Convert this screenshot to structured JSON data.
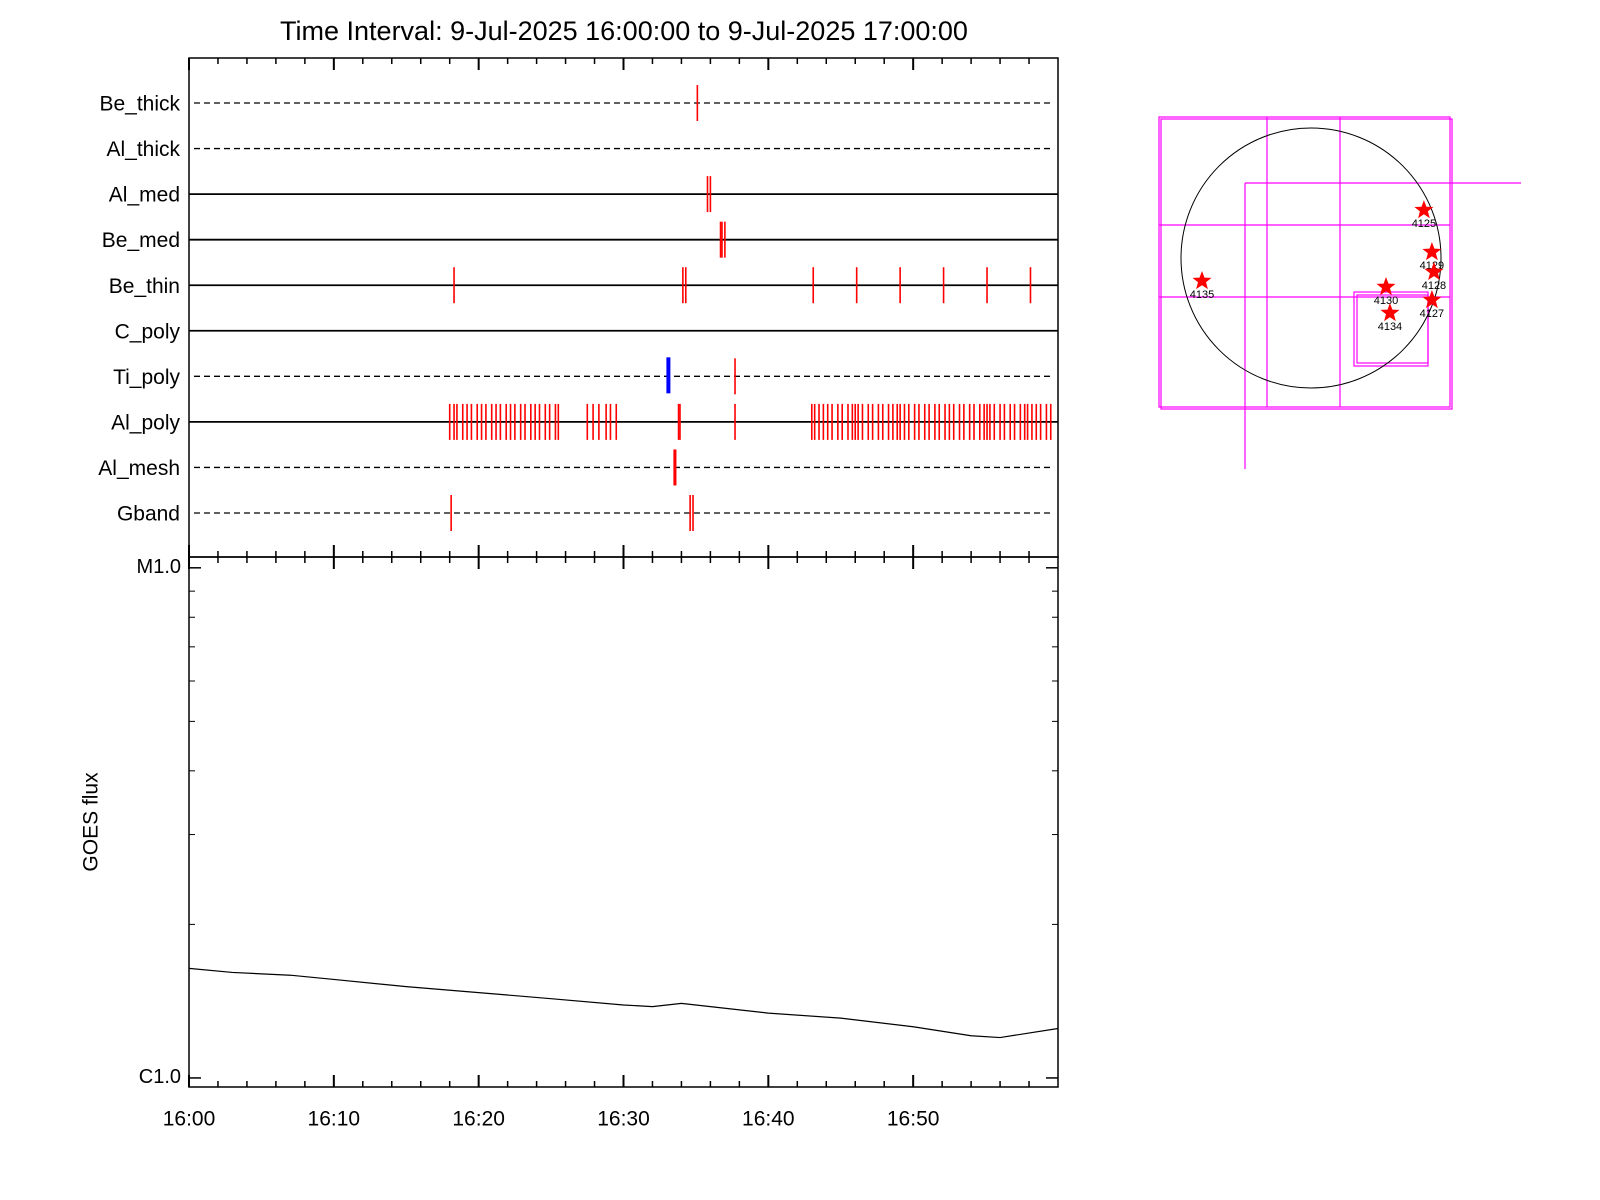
{
  "chart_data": [
    {
      "type": "timeline",
      "title": "Time Interval:  9-Jul-2025 16:00:00 to  9-Jul-2025 17:00:00",
      "color": "#ff0000",
      "highlight_color": "#0000ff",
      "rows": [
        {
          "name": "Be_thick",
          "line": "dashed",
          "events": [
            35.1
          ]
        },
        {
          "name": "Al_thick",
          "line": "dashed",
          "events": []
        },
        {
          "name": "Al_med",
          "line": "solid",
          "events": [
            35.8,
            36.0
          ]
        },
        {
          "name": "Be_med",
          "line": "solid",
          "events": [
            36.7,
            36.8,
            37.0
          ]
        },
        {
          "name": "Be_thin",
          "line": "solid",
          "events": [
            18.3,
            34.1,
            34.3,
            43.1,
            46.1,
            49.1,
            52.1,
            55.1,
            58.1
          ]
        },
        {
          "name": "C_poly",
          "line": "solid",
          "events": []
        },
        {
          "name": "Ti_poly",
          "line": "dashed",
          "events": [
            37.7
          ],
          "highlight_events": [
            33.1
          ]
        },
        {
          "name": "Al_poly",
          "line": "solid",
          "events": [
            18.0,
            18.3,
            18.5,
            18.9,
            19.2,
            19.5,
            19.9,
            20.2,
            20.5,
            20.9,
            21.2,
            21.5,
            21.9,
            22.2,
            22.5,
            22.9,
            23.2,
            23.6,
            23.9,
            24.2,
            24.6,
            24.9,
            25.3,
            25.5,
            27.5,
            27.9,
            28.3,
            28.8,
            29.1,
            29.5,
            33.8,
            33.9,
            37.7,
            43.0,
            43.2,
            43.5,
            43.8,
            44.1,
            44.4,
            44.8,
            45.1,
            45.5,
            45.8,
            46.0,
            46.2,
            46.5,
            46.9,
            47.2,
            47.6,
            47.9,
            48.3,
            48.6,
            48.9,
            49.1,
            49.4,
            49.7,
            50.1,
            50.4,
            50.8,
            51.1,
            51.5,
            51.8,
            52.2,
            52.5,
            52.8,
            53.2,
            53.5,
            53.9,
            54.2,
            54.6,
            54.9,
            55.1,
            55.3,
            55.6,
            56.0,
            56.3,
            56.7,
            57.0,
            57.4,
            57.7,
            57.9,
            58.2,
            58.5,
            58.8,
            59.2,
            59.5
          ]
        },
        {
          "name": "Al_mesh",
          "line": "dashed",
          "events": [
            33.5,
            33.6
          ]
        },
        {
          "name": "Gband",
          "line": "dashed",
          "events": [
            18.1,
            34.6,
            34.8
          ]
        }
      ]
    },
    {
      "type": "line",
      "ylabel": "GOES flux",
      "log_scale": true,
      "color": "#000000",
      "x": [
        0,
        3,
        7,
        10,
        15,
        20,
        25,
        30,
        32,
        34,
        36,
        40,
        45,
        50,
        54,
        56,
        60
      ],
      "values": [
        1.64e-06,
        1.61e-06,
        1.59e-06,
        1.56e-06,
        1.51e-06,
        1.47e-06,
        1.43e-06,
        1.39e-06,
        1.38e-06,
        1.4e-06,
        1.38e-06,
        1.34e-06,
        1.31e-06,
        1.26e-06,
        1.21e-06,
        1.2e-06,
        1.25e-06
      ],
      "xlim": [
        0,
        60
      ],
      "xticks": [
        {
          "value": 0,
          "label": "16:00"
        },
        {
          "value": 10,
          "label": "16:10"
        },
        {
          "value": 20,
          "label": "16:20"
        },
        {
          "value": 30,
          "label": "16:30"
        },
        {
          "value": 40,
          "label": "16:40"
        },
        {
          "value": 50,
          "label": "16:50"
        }
      ],
      "xminorticks": [
        2,
        4,
        6,
        8,
        12,
        14,
        16,
        18,
        22,
        24,
        26,
        28,
        32,
        34,
        36,
        38,
        42,
        44,
        46,
        48,
        52,
        54,
        56,
        58
      ],
      "ylim": [
        9.6e-07,
        1.05e-05
      ],
      "yticks": [
        {
          "value": 1e-06,
          "label": "C1.0"
        },
        {
          "value": 1e-05,
          "label": "M1.0"
        }
      ],
      "yminorticks": [
        2e-06,
        3e-06,
        4e-06,
        5e-06,
        6e-06,
        7e-06,
        8e-06,
        9e-06
      ]
    },
    {
      "type": "map",
      "color": "#ff0000",
      "points": [
        {
          "label": "4125",
          "x": 834,
          "y": 354
        },
        {
          "label": "4129",
          "x": 893,
          "y": 44
        },
        {
          "label": "4128",
          "x": 908,
          "y": -103
        },
        {
          "label": "4130",
          "x": 554,
          "y": -214
        },
        {
          "label": "4127",
          "x": 893,
          "y": -310
        },
        {
          "label": "4134",
          "x": 583,
          "y": -406
        },
        {
          "label": "4135",
          "x": -805,
          "y": -170
        }
      ]
    }
  ]
}
